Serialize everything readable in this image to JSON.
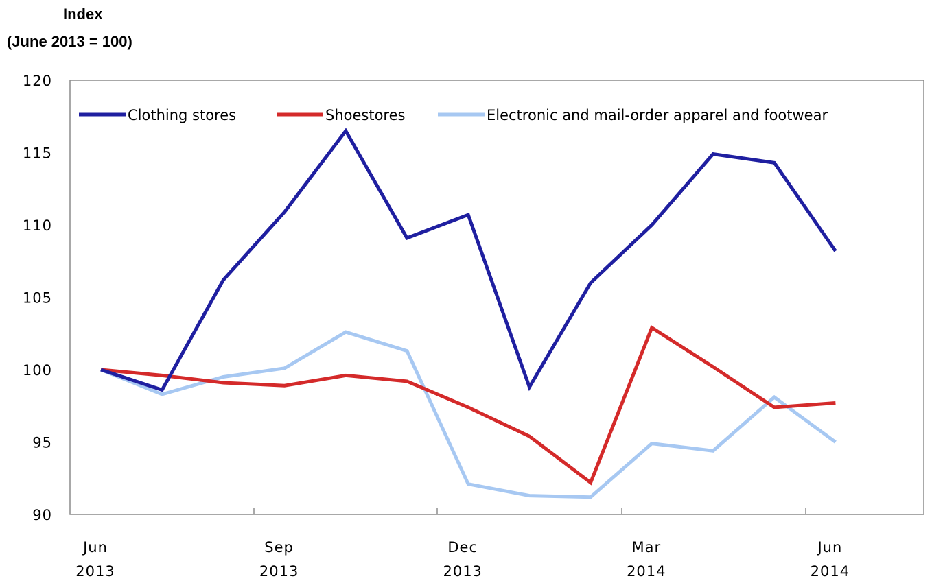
{
  "chart_data": {
    "type": "line",
    "ylabel_line1": "Index",
    "ylabel_line2": "(June 2013 = 100)",
    "ylim": [
      90,
      120
    ],
    "yticks": [
      "90",
      "95",
      "100",
      "105",
      "110",
      "115",
      "120"
    ],
    "xtick_labels": [
      {
        "month": "Jun",
        "year": "2013"
      },
      {
        "month": "Sep",
        "year": "2013"
      },
      {
        "month": "Dec",
        "year": "2013"
      },
      {
        "month": "Mar",
        "year": "2014"
      },
      {
        "month": "Jun",
        "year": "2014"
      }
    ],
    "x": [
      "2013-06",
      "2013-07",
      "2013-08",
      "2013-09",
      "2013-10",
      "2013-11",
      "2013-12",
      "2014-01",
      "2014-02",
      "2014-03",
      "2014-04",
      "2014-05",
      "2014-06"
    ],
    "grid": false,
    "legend_position": "top",
    "series": [
      {
        "name": "Clothing stores",
        "color": "#1f1fa0",
        "values": [
          100.0,
          98.6,
          106.2,
          110.9,
          116.5,
          109.1,
          110.7,
          98.8,
          106.0,
          110.0,
          114.9,
          114.3,
          108.2
        ]
      },
      {
        "name": "Shoestores",
        "color": "#d42a2a",
        "values": [
          100.0,
          99.6,
          99.1,
          98.9,
          99.6,
          99.2,
          97.4,
          95.4,
          92.2,
          102.9,
          100.2,
          97.4,
          97.7
        ]
      },
      {
        "name": "Electronic and mail-order apparel and footwear",
        "color": "#a7c8f2",
        "values": [
          100.0,
          98.3,
          99.5,
          100.1,
          102.6,
          101.3,
          92.1,
          91.3,
          91.2,
          94.9,
          94.4,
          98.1,
          95.0
        ]
      }
    ]
  }
}
